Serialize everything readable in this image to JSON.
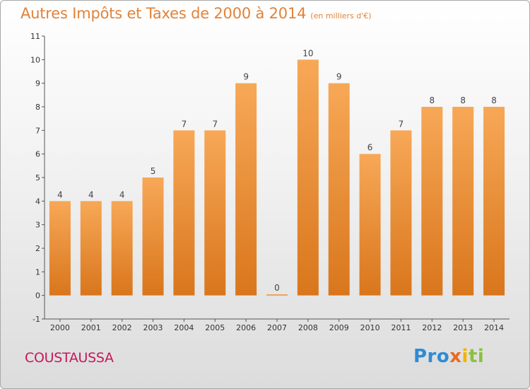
{
  "title": "Autres Impôts et Taxes de 2000 à 2014",
  "unit": "(en milliers d'€)",
  "commune": "COUSTAUSSA",
  "logo": {
    "p1": "Pro",
    "p2": "x",
    "p3": "i",
    "p4": "ti"
  },
  "colors": {
    "title": "#e0833a",
    "bar_light": "#f7a857",
    "bar_dark": "#d9761c",
    "commune": "#c4195a"
  },
  "chart_data": {
    "type": "bar",
    "categories": [
      "2000",
      "2001",
      "2002",
      "2003",
      "2004",
      "2005",
      "2006",
      "2007",
      "2008",
      "2009",
      "2010",
      "2011",
      "2012",
      "2013",
      "2014"
    ],
    "values": [
      4,
      4,
      4,
      5,
      7,
      7,
      9,
      0,
      10,
      9,
      6,
      7,
      8,
      8,
      8
    ],
    "value_labels": [
      "4",
      "4",
      "4",
      "5",
      "7",
      "7",
      "9",
      "0",
      "10",
      "9",
      "6",
      "7",
      "8",
      "8",
      "8"
    ],
    "ylim": [
      -1,
      11
    ],
    "yticks": [
      "-1",
      "0",
      "1",
      "2",
      "3",
      "4",
      "5",
      "6",
      "7",
      "8",
      "9",
      "10",
      "11"
    ],
    "grid": false
  }
}
